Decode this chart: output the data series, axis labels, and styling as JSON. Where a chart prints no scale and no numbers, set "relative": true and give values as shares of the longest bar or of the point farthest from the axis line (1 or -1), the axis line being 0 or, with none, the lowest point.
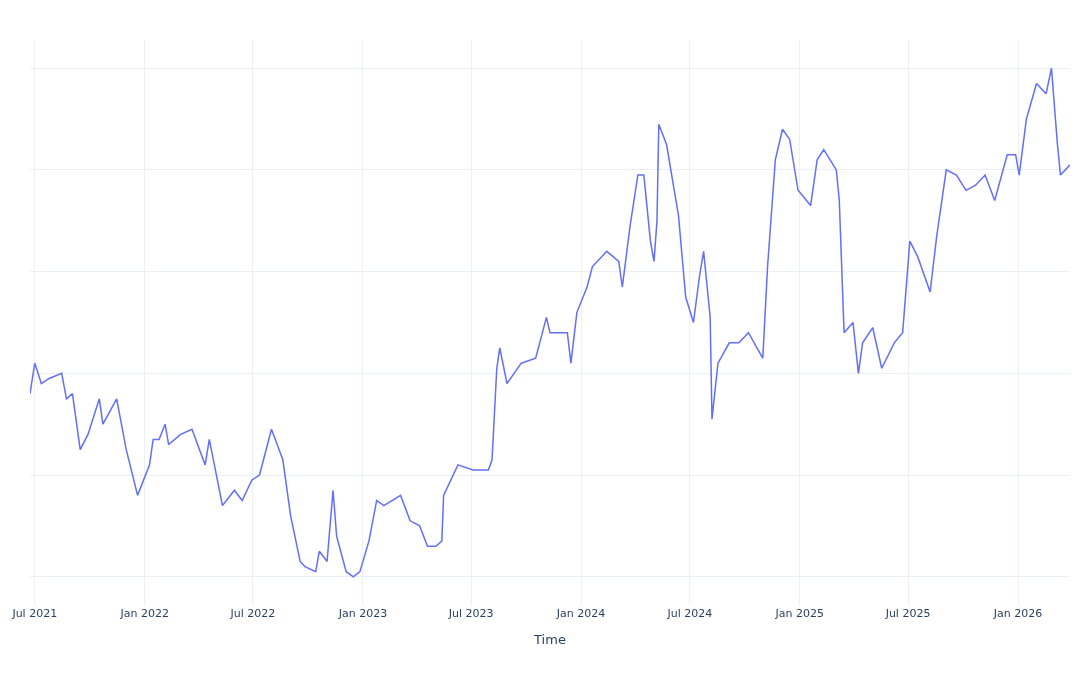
{
  "chart_data": {
    "type": "line",
    "xlabel": "Time",
    "relative": true,
    "grid": true,
    "marker": "none",
    "line_style": "solid",
    "xlim": [
      "2021-06-23",
      "2026-03-29"
    ],
    "xticks": [
      {
        "value": "2021-07-01",
        "label": "Jul 2021"
      },
      {
        "value": "2022-01-01",
        "label": "Jan 2022"
      },
      {
        "value": "2022-07-01",
        "label": "Jul 2022"
      },
      {
        "value": "2023-01-01",
        "label": "Jan 2023"
      },
      {
        "value": "2023-07-01",
        "label": "Jul 2023"
      },
      {
        "value": "2024-01-01",
        "label": "Jan 2024"
      },
      {
        "value": "2024-07-01",
        "label": "Jul 2024"
      },
      {
        "value": "2025-01-01",
        "label": "Jan 2025"
      },
      {
        "value": "2025-07-01",
        "label": "Jul 2025"
      },
      {
        "value": "2026-01-01",
        "label": "Jan 2026"
      }
    ],
    "x": [
      "2021-06-23",
      "2021-07-01",
      "2021-07-12",
      "2021-07-25",
      "2021-08-15",
      "2021-08-23",
      "2021-09-02",
      "2021-09-15",
      "2021-09-28",
      "2021-10-17",
      "2021-10-23",
      "2021-11-15",
      "2021-12-01",
      "2021-12-20",
      "2022-01-09",
      "2022-01-15",
      "2022-01-25",
      "2022-02-04",
      "2022-02-10",
      "2022-03-02",
      "2022-03-21",
      "2022-04-12",
      "2022-04-19",
      "2022-05-11",
      "2022-05-31",
      "2022-06-13",
      "2022-06-29",
      "2022-07-12",
      "2022-08-01",
      "2022-08-20",
      "2022-09-02",
      "2022-09-18",
      "2022-09-26",
      "2022-10-14",
      "2022-10-20",
      "2022-11-02",
      "2022-11-12",
      "2022-11-18",
      "2022-12-04",
      "2022-12-16",
      "2022-12-27",
      "2023-01-11",
      "2023-01-24",
      "2023-02-05",
      "2023-03-05",
      "2023-03-21",
      "2023-04-06",
      "2023-04-19",
      "2023-05-03",
      "2023-05-13",
      "2023-05-16",
      "2023-06-09",
      "2023-07-04",
      "2023-07-30",
      "2023-08-05",
      "2023-08-13",
      "2023-08-18",
      "2023-08-30",
      "2023-09-23",
      "2023-10-17",
      "2023-11-04",
      "2023-11-10",
      "2023-12-09",
      "2023-12-15",
      "2023-12-25",
      "2024-01-11",
      "2024-01-20",
      "2024-02-13",
      "2024-03-04",
      "2024-03-10",
      "2024-03-23",
      "2024-04-05",
      "2024-04-15",
      "2024-04-26",
      "2024-05-02",
      "2024-05-07",
      "2024-05-10",
      "2024-05-23",
      "2024-06-12",
      "2024-06-24",
      "2024-07-07",
      "2024-07-17",
      "2024-07-24",
      "2024-08-04",
      "2024-08-07",
      "2024-08-17",
      "2024-09-05",
      "2024-09-21",
      "2024-10-07",
      "2024-10-31",
      "2024-11-08",
      "2024-11-21",
      "2024-12-03",
      "2024-12-15",
      "2024-12-29",
      "2025-01-19",
      "2025-01-30",
      "2025-02-10",
      "2025-03-03",
      "2025-03-08",
      "2025-03-16",
      "2025-03-31",
      "2025-04-09",
      "2025-04-16",
      "2025-05-03",
      "2025-05-18",
      "2025-06-08",
      "2025-06-22",
      "2025-07-04",
      "2025-07-17",
      "2025-08-07",
      "2025-08-18",
      "2025-09-03",
      "2025-09-20",
      "2025-10-06",
      "2025-10-22",
      "2025-11-07",
      "2025-11-23",
      "2025-12-14",
      "2025-12-28",
      "2026-01-03",
      "2026-01-15",
      "2026-02-01",
      "2026-02-17",
      "2026-02-26",
      "2026-03-08",
      "2026-03-13",
      "2026-03-29"
    ],
    "series": [
      {
        "color": "#636efa",
        "values": [
          0.36,
          0.42,
          0.38,
          0.39,
          0.4,
          0.35,
          0.36,
          0.25,
          0.28,
          0.35,
          0.3,
          0.35,
          0.25,
          0.16,
          0.22,
          0.27,
          0.27,
          0.3,
          0.26,
          0.28,
          0.29,
          0.22,
          0.27,
          0.14,
          0.17,
          0.15,
          0.19,
          0.2,
          0.29,
          0.23,
          0.12,
          0.03,
          0.02,
          0.01,
          0.05,
          0.03,
          0.17,
          0.08,
          0.01,
          0.0,
          0.01,
          0.07,
          0.15,
          0.14,
          0.16,
          0.11,
          0.1,
          0.06,
          0.06,
          0.07,
          0.16,
          0.22,
          0.21,
          0.21,
          0.23,
          0.41,
          0.45,
          0.38,
          0.42,
          0.43,
          0.51,
          0.48,
          0.48,
          0.42,
          0.52,
          0.57,
          0.61,
          0.64,
          0.62,
          0.57,
          0.69,
          0.79,
          0.79,
          0.66,
          0.62,
          0.7,
          0.89,
          0.85,
          0.71,
          0.55,
          0.5,
          0.59,
          0.64,
          0.51,
          0.31,
          0.42,
          0.46,
          0.46,
          0.48,
          0.43,
          0.61,
          0.82,
          0.88,
          0.86,
          0.76,
          0.73,
          0.82,
          0.84,
          0.8,
          0.74,
          0.48,
          0.5,
          0.4,
          0.46,
          0.49,
          0.41,
          0.46,
          0.48,
          0.66,
          0.63,
          0.56,
          0.67,
          0.8,
          0.79,
          0.76,
          0.77,
          0.79,
          0.74,
          0.83,
          0.83,
          0.79,
          0.9,
          0.97,
          0.95,
          1.0,
          0.85,
          0.79,
          0.81
        ]
      }
    ]
  }
}
